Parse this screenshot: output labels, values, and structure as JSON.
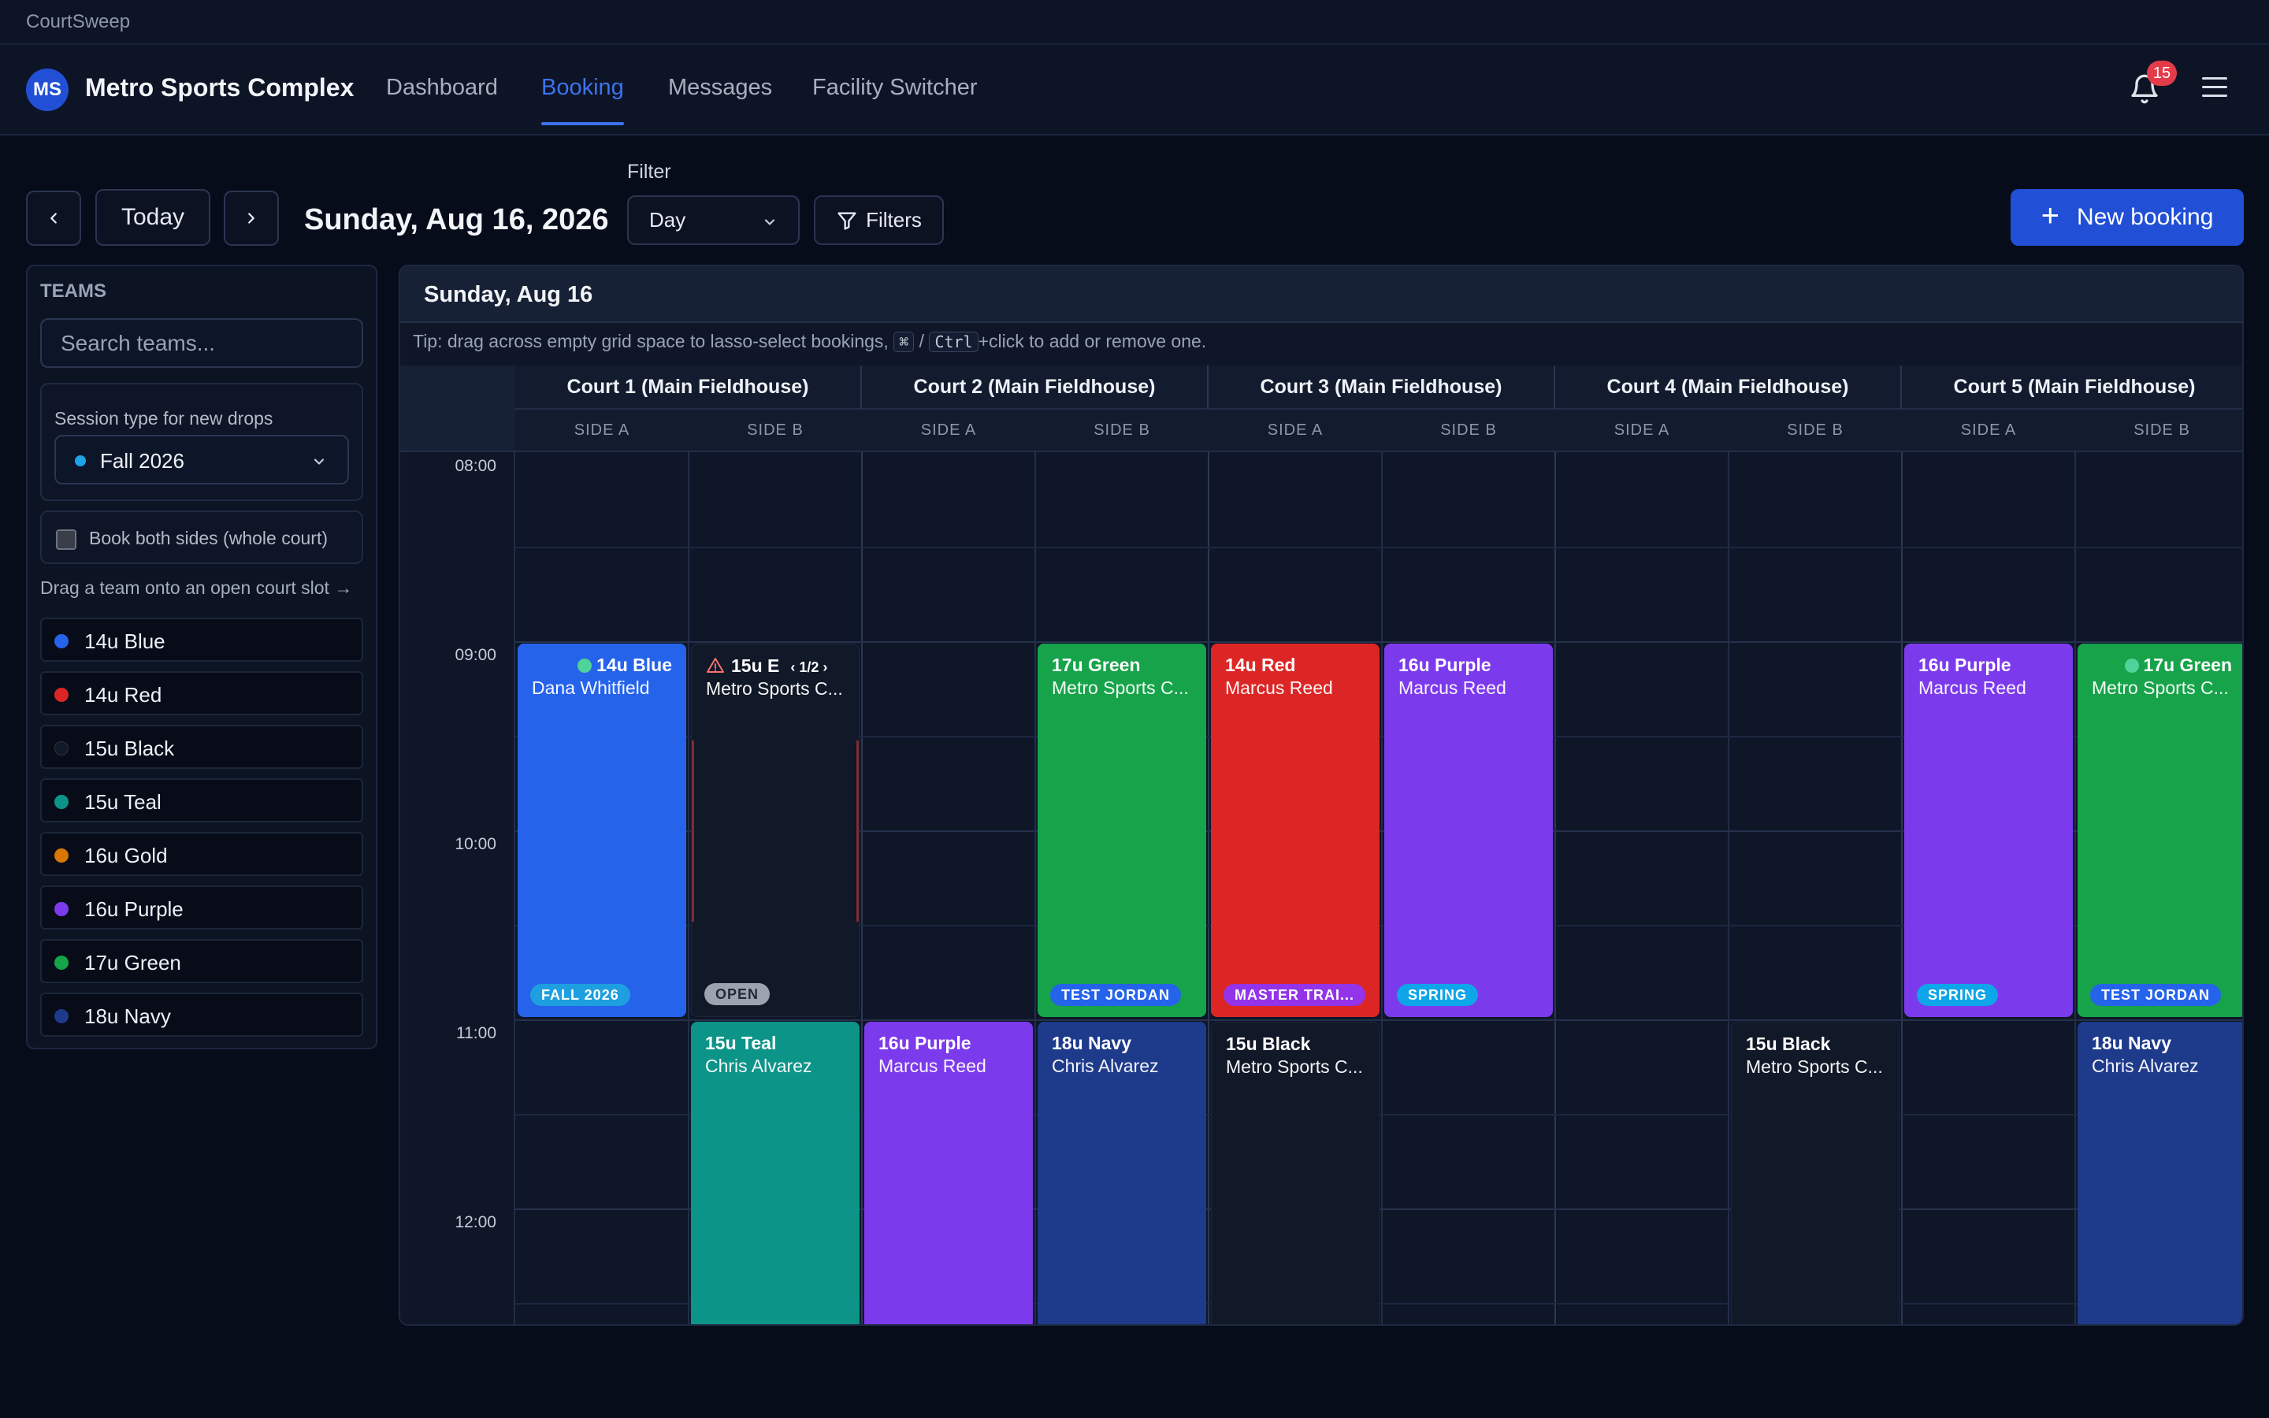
{
  "app_title": "CourtSweep",
  "header": {
    "avatar_initials": "MS",
    "facility_name": "Metro Sports Complex",
    "nav": [
      "Dashboard",
      "Booking",
      "Messages",
      "Facility Switcher"
    ],
    "active_nav": "Booking",
    "notification_count": "15"
  },
  "toolbar": {
    "today_label": "Today",
    "date_title": "Sunday, Aug 16, 2026",
    "filter_label": "Filter",
    "view_value": "Day",
    "filters_label": "Filters",
    "new_booking_label": "New booking"
  },
  "sidebar": {
    "title": "TEAMS",
    "search_placeholder": "Search teams...",
    "session_label": "Session type for new drops",
    "session_value": "Fall 2026",
    "both_sides_label": "Book both sides (whole court)",
    "drag_hint": "Drag a team onto an open court slot →",
    "teams": [
      {
        "name": "14u Blue",
        "color": "#2563eb"
      },
      {
        "name": "14u Red",
        "color": "#dc2626"
      },
      {
        "name": "15u Black",
        "color": "#111827"
      },
      {
        "name": "15u Teal",
        "color": "#0d9488"
      },
      {
        "name": "16u Gold",
        "color": "#d97706"
      },
      {
        "name": "16u Purple",
        "color": "#7c3aed"
      },
      {
        "name": "17u Green",
        "color": "#16a34a"
      },
      {
        "name": "18u Navy",
        "color": "#1e3a8a"
      }
    ]
  },
  "calendar": {
    "day_title": "Sunday, Aug 16",
    "tip_before": "Tip: drag across empty grid space to lasso-select bookings,",
    "tip_key1": "⌘",
    "tip_sep": "/",
    "tip_key2": "Ctrl",
    "tip_after": "+click to add or remove one.",
    "times": [
      "08:00",
      "09:00",
      "10:00",
      "11:00",
      "12:00"
    ],
    "courts": [
      "Court 1 (Main Fieldhouse)",
      "Court 2 (Main Fieldhouse)",
      "Court 3 (Main Fieldhouse)",
      "Court 4 (Main Fieldhouse)",
      "Court 5 (Main Fieldhouse)"
    ],
    "sides": [
      "SIDE A",
      "SIDE B"
    ],
    "bookings": [
      {
        "court": 1,
        "side": 1,
        "start": 9,
        "end": 11,
        "title": "14u Blue",
        "sub": "Dana Whitfield",
        "tag": "FALL 2026",
        "color": "#2563eb",
        "tag_color": "#1e9fe0",
        "status": "confirmed"
      },
      {
        "court": 1,
        "side": 2,
        "start": 9,
        "end": 11,
        "title": "15u E",
        "sub": "Metro Sports C...",
        "tag": "OPEN",
        "color": "#111827",
        "tag_color": "#9ca3af",
        "status": "conflict",
        "pager": "1/2"
      },
      {
        "court": 2,
        "side": 2,
        "start": 9,
        "end": 11,
        "title": "17u Green",
        "sub": "Metro Sports C...",
        "tag": "TEST JORDAN",
        "color": "#16a34a",
        "tag_color": "#2563eb"
      },
      {
        "court": 3,
        "side": 1,
        "start": 9,
        "end": 11,
        "title": "14u Red",
        "sub": "Marcus Reed",
        "tag": "MASTER TRAI...",
        "color": "#dc2626",
        "tag_color": "#9333ea"
      },
      {
        "court": 3,
        "side": 2,
        "start": 9,
        "end": 11,
        "title": "16u Purple",
        "sub": "Marcus Reed",
        "tag": "SPRING",
        "color": "#7c3aed",
        "tag_color": "#0ea5e9"
      },
      {
        "court": 5,
        "side": 1,
        "start": 9,
        "end": 11,
        "title": "16u Purple",
        "sub": "Marcus Reed",
        "tag": "SPRING",
        "color": "#7c3aed",
        "tag_color": "#0ea5e9"
      },
      {
        "court": 5,
        "side": 2,
        "start": 9,
        "end": 11,
        "title": "17u Green",
        "sub": "Metro Sports C...",
        "tag": "TEST JORDAN",
        "color": "#16a34a",
        "tag_color": "#2563eb",
        "status": "confirmed"
      },
      {
        "court": 1,
        "side": 2,
        "start": 11,
        "end": 12.65,
        "title": "15u Teal",
        "sub": "Chris Alvarez",
        "color": "#0d9488"
      },
      {
        "court": 2,
        "side": 1,
        "start": 11,
        "end": 12.65,
        "title": "16u Purple",
        "sub": "Marcus Reed",
        "color": "#7c3aed"
      },
      {
        "court": 2,
        "side": 2,
        "start": 11,
        "end": 12.65,
        "title": "18u Navy",
        "sub": "Chris Alvarez",
        "color": "#1e3a8a"
      },
      {
        "court": 3,
        "side": 1,
        "start": 11,
        "end": 12.65,
        "title": "15u Black",
        "sub": "Metro Sports C...",
        "color": "#111827"
      },
      {
        "court": 4,
        "side": 2,
        "start": 11,
        "end": 12.65,
        "title": "15u Black",
        "sub": "Metro Sports C...",
        "color": "#111827"
      },
      {
        "court": 5,
        "side": 2,
        "start": 11,
        "end": 12.65,
        "title": "18u Navy",
        "sub": "Chris Alvarez",
        "color": "#1e3a8a"
      }
    ]
  }
}
